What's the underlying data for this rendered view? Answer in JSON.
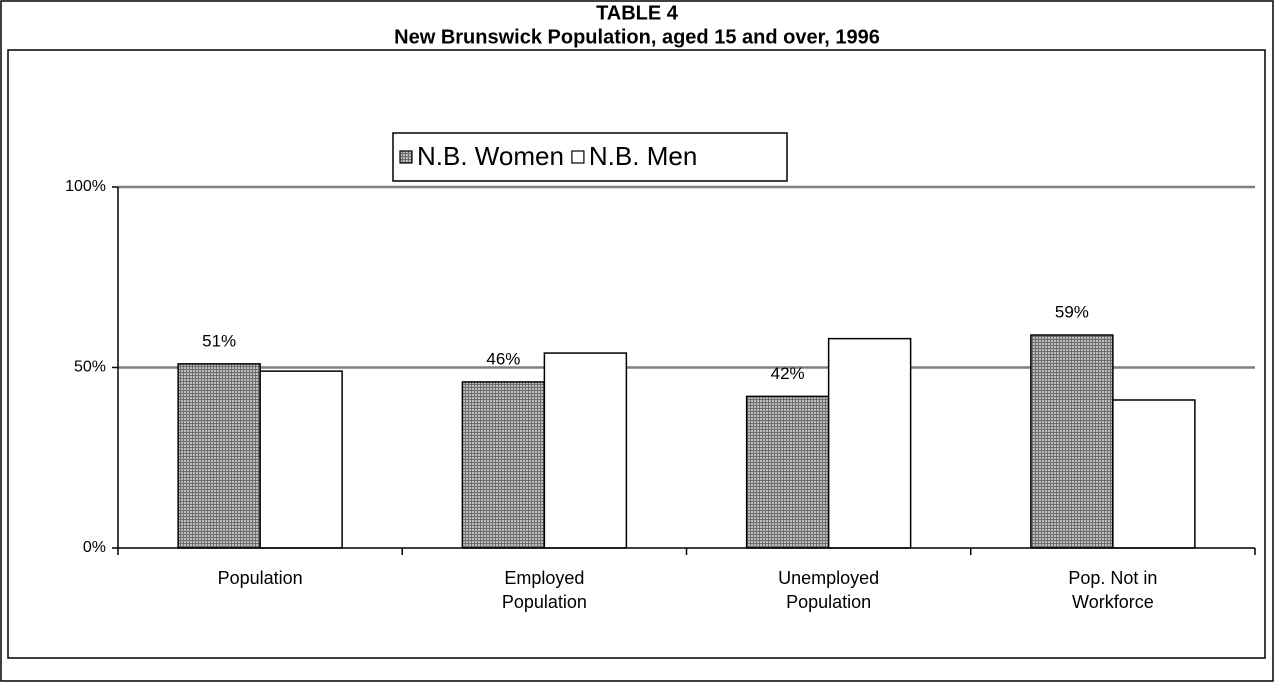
{
  "chart_data": {
    "type": "bar",
    "title": "TABLE 4",
    "subtitle": "New Brunswick Population, aged 15 and over, 1996",
    "categories": [
      "Population",
      "Employed Population",
      "Unemployed Population",
      "Pop. Not in Workforce"
    ],
    "series": [
      {
        "name": "N.B. Women",
        "color": "#9c9c9c",
        "values": [
          51,
          46,
          42,
          59
        ],
        "value_labels": [
          "51%",
          "46%",
          "42%",
          "59%"
        ]
      },
      {
        "name": "N.B. Men",
        "color": "#ffffff",
        "values": [
          49,
          54,
          58,
          41
        ]
      }
    ],
    "ylim": [
      0,
      100
    ],
    "yticks": [
      {
        "value": 0,
        "label": "0%"
      },
      {
        "value": 50,
        "label": "50%"
      },
      {
        "value": 100,
        "label": "100%"
      }
    ],
    "grid": true,
    "legend": "top"
  }
}
